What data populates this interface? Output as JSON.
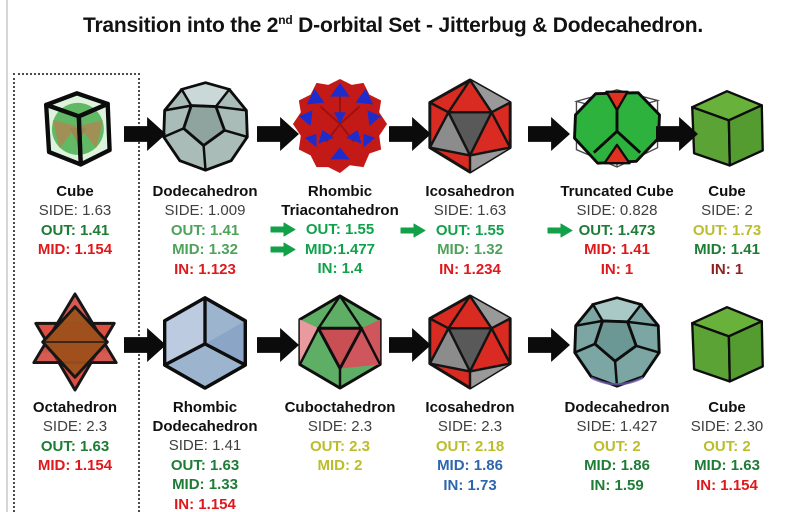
{
  "title": {
    "text_before_sup": "Transition into the 2",
    "sup": "nd",
    "text_after_sup": " D-orbital Set - Jitterbug & Dodecahedron."
  },
  "palette": {
    "side": "#3f3f3f",
    "dark_green": "#1d7c35",
    "medium_green": "#4da35a",
    "bright_green": "#10a24a",
    "red": "#e0181c",
    "maroon": "#8e2120",
    "olive": "#bcbd2b",
    "blue": "#2e66ae",
    "green_arrow": "#12a149",
    "black_arrow": "#0b0b0b"
  },
  "rows": [
    {
      "cells": [
        {
          "shape": "cube-jitterbug",
          "name_lines": [
            "Cube"
          ],
          "arrow_after": true,
          "values": [
            {
              "text": "SIDE: 1.63",
              "color": "side"
            },
            {
              "text": "OUT: 1.41",
              "color": "dark_green"
            },
            {
              "text": "MID: 1.154",
              "color": "red"
            }
          ]
        },
        {
          "shape": "dodecahedron-gray",
          "name_lines": [
            "Dodecahedron"
          ],
          "arrow_after": true,
          "values": [
            {
              "text": "SIDE: 1.009",
              "color": "side"
            },
            {
              "text": "OUT: 1.41",
              "color": "medium_green"
            },
            {
              "text": "MID: 1.32",
              "color": "medium_green"
            },
            {
              "text": "IN: 1.123",
              "color": "red"
            }
          ]
        },
        {
          "shape": "rhombic-triacontahedron",
          "name_lines": [
            "Rhombic",
            "Triacontahedron"
          ],
          "arrow_after": true,
          "values": [
            {
              "text": "OUT: 1.55",
              "color": "bright_green",
              "green_arrow": true
            },
            {
              "text": "MID:1.477",
              "color": "bright_green",
              "green_arrow": true
            },
            {
              "text": "IN: 1.4",
              "color": "bright_green"
            }
          ]
        },
        {
          "shape": "icosahedron-red",
          "name_lines": [
            "Icosahedron"
          ],
          "arrow_after": true,
          "values": [
            {
              "text": "SIDE: 1.63",
              "color": "side"
            },
            {
              "text": "OUT: 1.55",
              "color": "bright_green",
              "green_arrow": true
            },
            {
              "text": "MID: 1.32",
              "color": "medium_green"
            },
            {
              "text": "IN: 1.234",
              "color": "red"
            }
          ]
        },
        {
          "shape": "truncated-cube",
          "name_lines": [
            "Truncated Cube"
          ],
          "arrow_after": true,
          "values": [
            {
              "text": "SIDE: 0.828",
              "color": "side"
            },
            {
              "text": "OUT: 1.473",
              "color": "dark_green",
              "green_arrow": true
            },
            {
              "text": "MID: 1.41",
              "color": "red"
            },
            {
              "text": "IN: 1",
              "color": "red"
            }
          ]
        },
        {
          "shape": "cube-green",
          "name_lines": [
            "Cube"
          ],
          "arrow_after": false,
          "values": [
            {
              "text": "SIDE: 2",
              "color": "side"
            },
            {
              "text": "OUT: 1.73",
              "color": "olive"
            },
            {
              "text": "MID: 1.41",
              "color": "dark_green"
            },
            {
              "text": "IN: 1",
              "color": "maroon"
            }
          ]
        }
      ]
    },
    {
      "cells": [
        {
          "shape": "octahedron-star",
          "name_lines": [
            "Octahedron"
          ],
          "arrow_after": true,
          "values": [
            {
              "text": "SIDE: 2.3",
              "color": "side"
            },
            {
              "text": "OUT: 1.63",
              "color": "dark_green"
            },
            {
              "text": "MID: 1.154",
              "color": "red"
            }
          ]
        },
        {
          "shape": "rhombic-dodecahedron-blue",
          "name_lines": [
            "Rhombic",
            "Dodecahedron"
          ],
          "arrow_after": true,
          "values": [
            {
              "text": "SIDE: 1.41",
              "color": "side"
            },
            {
              "text": "OUT: 1.63",
              "color": "dark_green"
            },
            {
              "text": "MID: 1.33",
              "color": "dark_green"
            },
            {
              "text": "IN: 1.154",
              "color": "red"
            }
          ]
        },
        {
          "shape": "cuboctahedron",
          "name_lines": [
            "Cuboctahedron"
          ],
          "arrow_after": true,
          "values": [
            {
              "text": "SIDE: 2.3",
              "color": "side"
            },
            {
              "text": "OUT: 2.3",
              "color": "olive"
            },
            {
              "text": "MID: 2",
              "color": "olive"
            }
          ]
        },
        {
          "shape": "icosahedron-red",
          "name_lines": [
            "Icosahedron"
          ],
          "arrow_after": true,
          "values": [
            {
              "text": "SIDE: 2.3",
              "color": "side"
            },
            {
              "text": "OUT: 2.18",
              "color": "olive"
            },
            {
              "text": "MID: 1.86",
              "color": "blue"
            },
            {
              "text": "IN: 1.73",
              "color": "blue"
            }
          ]
        },
        {
          "shape": "dodecahedron-teal",
          "name_lines": [
            "Dodecahedron"
          ],
          "arrow_after": false,
          "values": [
            {
              "text": "SIDE: 1.427",
              "color": "side"
            },
            {
              "text": "OUT: 2",
              "color": "olive"
            },
            {
              "text": "MID: 1.86",
              "color": "dark_green"
            },
            {
              "text": "IN: 1.59",
              "color": "dark_green"
            }
          ]
        },
        {
          "shape": "cube-green",
          "name_lines": [
            "Cube"
          ],
          "arrow_after": false,
          "values": [
            {
              "text": "SIDE: 2.30",
              "color": "side"
            },
            {
              "text": "OUT: 2",
              "color": "olive"
            },
            {
              "text": "MID: 1.63",
              "color": "dark_green"
            },
            {
              "text": "IN: 1.154",
              "color": "red"
            }
          ]
        }
      ]
    }
  ]
}
